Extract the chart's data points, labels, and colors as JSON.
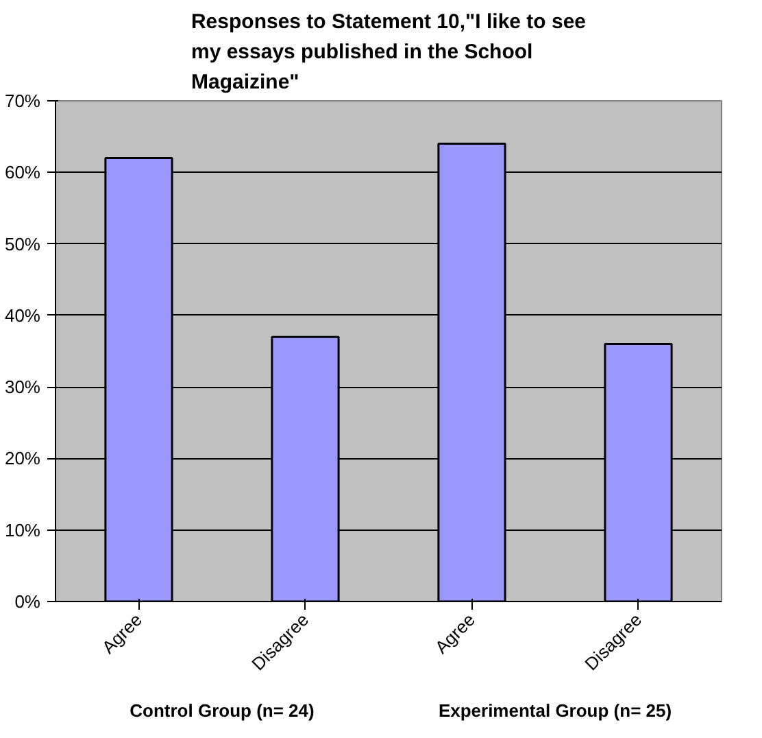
{
  "chart_data": {
    "type": "bar",
    "title": "Responses to Statement 10,\"I like to see my essays published in the School Magaizine\"",
    "categories": [
      "Agree",
      "Disagree",
      "Agree",
      "Disagree"
    ],
    "values": [
      62,
      37,
      64,
      36
    ],
    "color": "#9999ff",
    "ylim": [
      0,
      70
    ],
    "yticks": [
      {
        "value": 0,
        "label": "0%"
      },
      {
        "value": 10,
        "label": "10%"
      },
      {
        "value": 20,
        "label": "20%"
      },
      {
        "value": 30,
        "label": "30%"
      },
      {
        "value": 40,
        "label": "40%"
      },
      {
        "value": 50,
        "label": "50%"
      },
      {
        "value": 60,
        "label": "60%"
      },
      {
        "value": 70,
        "label": "70%"
      }
    ],
    "grid": "y",
    "annotations": [
      "Control Group (n= 24)",
      "Experimental Group (n= 25)"
    ]
  }
}
